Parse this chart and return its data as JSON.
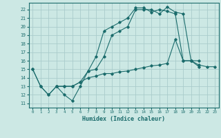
{
  "xlabel": "Humidex (Indice chaleur)",
  "background_color": "#cce8e4",
  "grid_color": "#aacccc",
  "line_color": "#1a6b6b",
  "xlim": [
    -0.5,
    23.5
  ],
  "ylim": [
    10.5,
    22.8
  ],
  "xticks": [
    0,
    1,
    2,
    3,
    4,
    5,
    6,
    7,
    8,
    9,
    10,
    11,
    12,
    13,
    14,
    15,
    16,
    17,
    18,
    19,
    20,
    21,
    22,
    23
  ],
  "yticks": [
    11,
    12,
    13,
    14,
    15,
    16,
    17,
    18,
    19,
    20,
    21,
    22
  ],
  "lines": [
    {
      "x": [
        0,
        1,
        2,
        3,
        4,
        5,
        6,
        7,
        8,
        9,
        10,
        11,
        12,
        13,
        14,
        15,
        16,
        17,
        18,
        19,
        20,
        21
      ],
      "y": [
        15,
        13,
        12,
        13,
        12,
        11.3,
        13,
        14.8,
        16.5,
        19.5,
        20,
        20.5,
        21,
        22.2,
        22.2,
        21.7,
        22,
        21.8,
        21.5,
        16,
        16,
        15.3
      ]
    },
    {
      "x": [
        0,
        1,
        2,
        3,
        4,
        5,
        6,
        7,
        8,
        9,
        10,
        11,
        12,
        13,
        14,
        15,
        16,
        17,
        18,
        19,
        20,
        21,
        22,
        23
      ],
      "y": [
        15,
        13,
        12,
        13,
        13,
        13,
        13.5,
        14,
        14.2,
        14.5,
        14.5,
        14.7,
        14.8,
        15,
        15.2,
        15.4,
        15.5,
        15.7,
        18.5,
        16,
        16,
        15.5,
        15.3,
        15.3
      ]
    },
    {
      "x": [
        3,
        4,
        5,
        6,
        7,
        8,
        9,
        10,
        11,
        12,
        13,
        14,
        15,
        16,
        17,
        18,
        19,
        20,
        21
      ],
      "y": [
        13,
        13,
        13,
        13.5,
        14.8,
        15,
        16.5,
        19,
        19.5,
        20,
        22,
        22,
        22,
        21.5,
        22.3,
        21.7,
        21.5,
        16,
        16
      ]
    }
  ]
}
